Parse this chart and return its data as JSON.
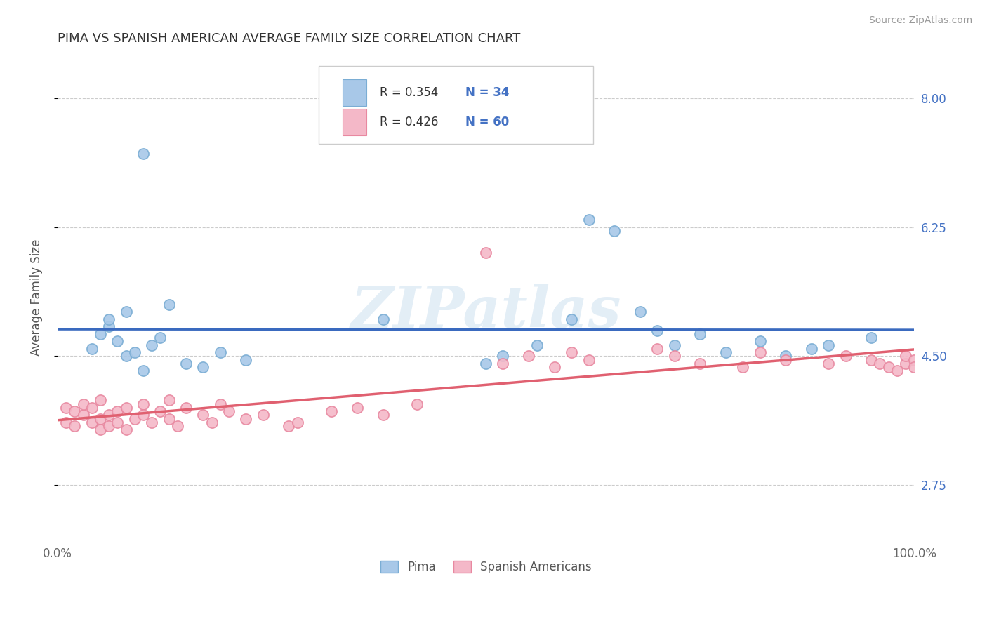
{
  "title": "PIMA VS SPANISH AMERICAN AVERAGE FAMILY SIZE CORRELATION CHART",
  "source": "Source: ZipAtlas.com",
  "ylabel": "Average Family Size",
  "xticklabels": [
    "0.0%",
    "100.0%"
  ],
  "yticks": [
    2.75,
    4.5,
    6.25,
    8.0
  ],
  "ytick_labels": [
    "2.75",
    "4.50",
    "6.25",
    "8.00"
  ],
  "xlim": [
    0.0,
    1.0
  ],
  "ylim": [
    2.0,
    8.6
  ],
  "background_color": "#ffffff",
  "grid_color": "#cccccc",
  "legend_r": [
    "R = 0.354",
    "R = 0.426"
  ],
  "legend_n": [
    "N = 34",
    "N = 60"
  ],
  "pima_color": "#a8c8e8",
  "pima_edge_color": "#7aadd4",
  "spanish_color": "#f4b8c8",
  "spanish_edge_color": "#e888a0",
  "pima_line_color": "#3a6abf",
  "spanish_line_color": "#e06070",
  "watermark": "ZIPatlas",
  "legend_color": "#4472c4",
  "pima_scatter_x": [
    0.1,
    0.04,
    0.05,
    0.06,
    0.06,
    0.07,
    0.08,
    0.08,
    0.09,
    0.1,
    0.11,
    0.12,
    0.13,
    0.15,
    0.17,
    0.19,
    0.22,
    0.38,
    0.5,
    0.52,
    0.62,
    0.65,
    0.72,
    0.75,
    0.78,
    0.82,
    0.85,
    0.88,
    0.56,
    0.6,
    0.68,
    0.7,
    0.9,
    0.95
  ],
  "pima_scatter_y": [
    7.25,
    4.6,
    4.8,
    4.9,
    5.0,
    4.7,
    5.1,
    4.5,
    4.55,
    4.3,
    4.65,
    4.75,
    5.2,
    4.4,
    4.35,
    4.55,
    4.45,
    5.0,
    4.4,
    4.5,
    6.35,
    6.2,
    4.65,
    4.8,
    4.55,
    4.7,
    4.5,
    4.6,
    4.65,
    5.0,
    5.1,
    4.85,
    4.65,
    4.75
  ],
  "spanish_scatter_x": [
    0.01,
    0.01,
    0.02,
    0.02,
    0.03,
    0.03,
    0.04,
    0.04,
    0.05,
    0.05,
    0.05,
    0.06,
    0.06,
    0.07,
    0.07,
    0.08,
    0.08,
    0.09,
    0.1,
    0.1,
    0.11,
    0.12,
    0.13,
    0.13,
    0.14,
    0.15,
    0.17,
    0.18,
    0.19,
    0.2,
    0.22,
    0.24,
    0.27,
    0.28,
    0.32,
    0.35,
    0.38,
    0.42,
    0.52,
    0.55,
    0.58,
    0.6,
    0.62,
    0.7,
    0.72,
    0.75,
    0.8,
    0.82,
    0.85,
    0.9,
    0.92,
    0.95,
    0.96,
    0.97,
    0.98,
    0.99,
    0.99,
    1.0,
    1.0,
    0.5
  ],
  "spanish_scatter_y": [
    3.8,
    3.6,
    3.75,
    3.55,
    3.7,
    3.85,
    3.6,
    3.8,
    3.65,
    3.5,
    3.9,
    3.7,
    3.55,
    3.75,
    3.6,
    3.8,
    3.5,
    3.65,
    3.85,
    3.7,
    3.6,
    3.75,
    3.9,
    3.65,
    3.55,
    3.8,
    3.7,
    3.6,
    3.85,
    3.75,
    3.65,
    3.7,
    3.55,
    3.6,
    3.75,
    3.8,
    3.7,
    3.85,
    4.4,
    4.5,
    4.35,
    4.55,
    4.45,
    4.6,
    4.5,
    4.4,
    4.35,
    4.55,
    4.45,
    4.4,
    4.5,
    4.45,
    4.4,
    4.35,
    4.3,
    4.4,
    4.5,
    4.45,
    4.35,
    5.9
  ]
}
